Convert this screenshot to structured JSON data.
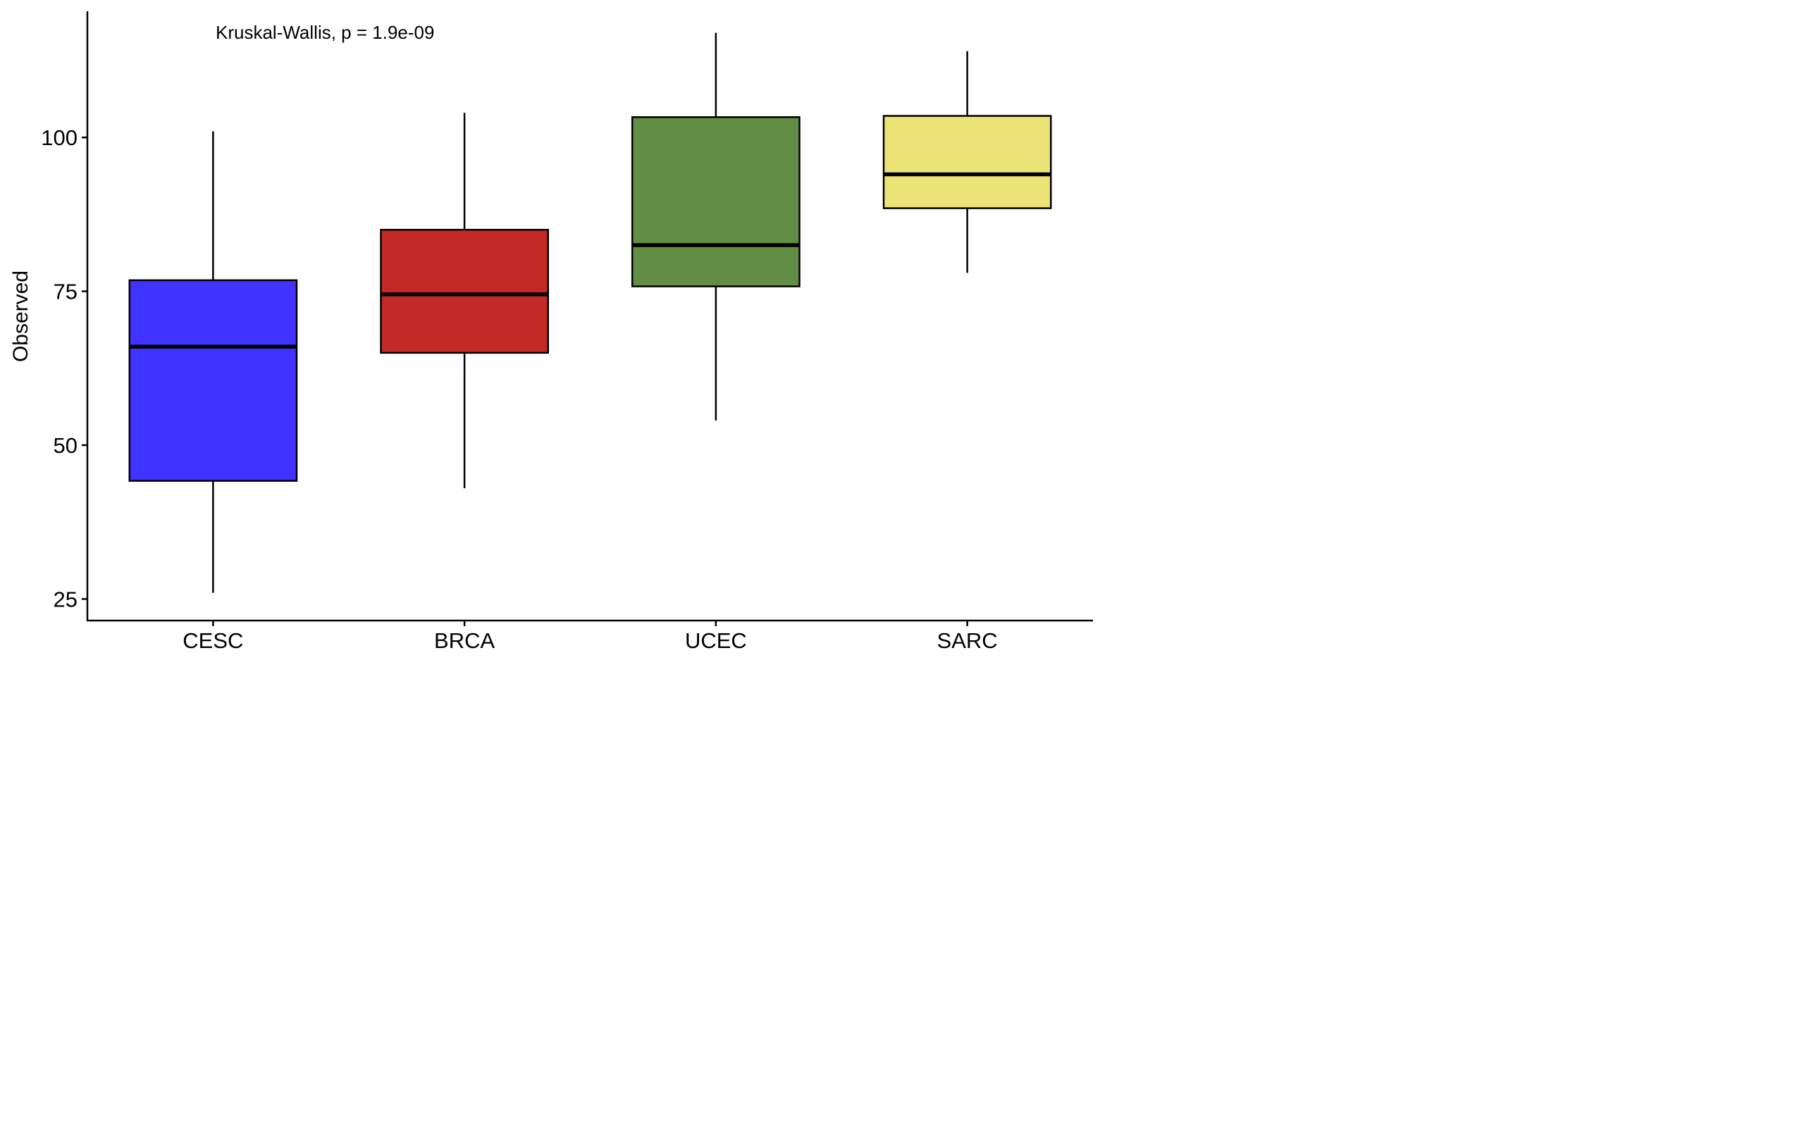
{
  "chart_data": {
    "type": "box",
    "annotation": "Kruskal-Wallis, p = 1.9e-09",
    "xlabel": "",
    "ylabel": "Observed",
    "ylim": [
      21.5,
      120.5
    ],
    "yticks": [
      25,
      50,
      75,
      100
    ],
    "ytick_labels": [
      "25",
      "50",
      "75",
      "100"
    ],
    "grid": false,
    "legend": "none",
    "groups": [
      {
        "name": "CESC",
        "color": "#4033FF",
        "whisker_low": 26,
        "q1": 44.2,
        "median": 66,
        "q3": 76.8,
        "whisker_high": 101
      },
      {
        "name": "BRCA",
        "color": "#C32A27",
        "whisker_low": 43,
        "q1": 65,
        "median": 74.5,
        "q3": 85,
        "whisker_high": 104
      },
      {
        "name": "UCEC",
        "color": "#618D45",
        "whisker_low": 54,
        "q1": 75.8,
        "median": 82.5,
        "q3": 103.3,
        "whisker_high": 117
      },
      {
        "name": "SARC",
        "color": "#ECE376",
        "whisker_low": 78,
        "q1": 88.5,
        "median": 94,
        "q3": 103.5,
        "whisker_high": 114
      }
    ]
  }
}
